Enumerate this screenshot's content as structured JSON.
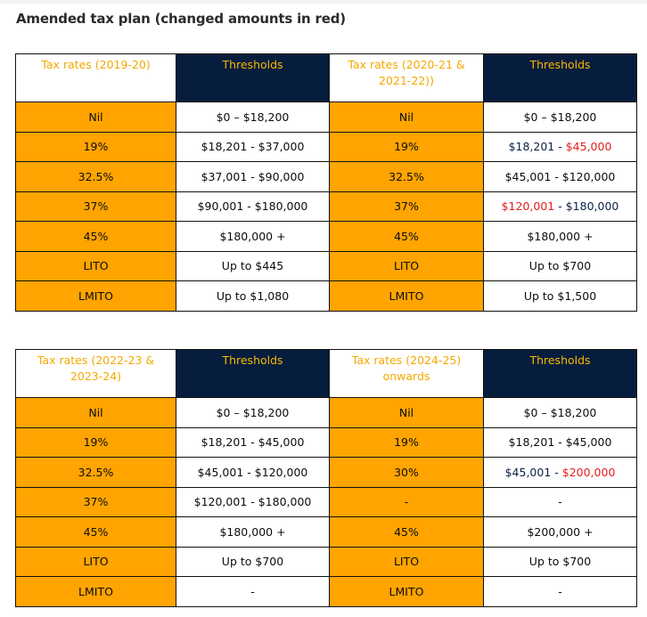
{
  "heading": "Amended tax plan (changed amounts in red)",
  "table1": {
    "headers": [
      "Tax rates (2019-20)",
      "Thresholds",
      "Tax rates (2020-21 & 2021-22))",
      "Thresholds"
    ],
    "rows": [
      {
        "rate_a": "Nil",
        "thr_a": "$0 – $18,200",
        "rate_b": "Nil",
        "thr_b_1": "$0 – $18,200",
        "thr_b_2": ""
      },
      {
        "rate_a": "19%",
        "thr_a": "$18,201 - $37,000",
        "rate_b": "19%",
        "thr_b_1": "$18,201 - ",
        "thr_b_2": "$45,000"
      },
      {
        "rate_a": "32.5%",
        "thr_a": "$37,001 - $90,000",
        "rate_b": "32.5%",
        "thr_b_1": "$45,001 - $120,000",
        "thr_b_2": ""
      },
      {
        "rate_a": "37%",
        "thr_a": "$90,001 - $180,000",
        "rate_b": "37%",
        "thr_b_1": "$120,001",
        "thr_b_2": " - $180,000"
      },
      {
        "rate_a": "45%",
        "thr_a": "$180,000 +",
        "rate_b": "45%",
        "thr_b_1": "$180,000 +",
        "thr_b_2": ""
      },
      {
        "rate_a": "LITO",
        "thr_a": "Up to $445",
        "rate_b": "LITO",
        "thr_b_1": "Up to $700",
        "thr_b_2": ""
      },
      {
        "rate_a": "LMITO",
        "thr_a": "Up to $1,080",
        "rate_b": "LMITO",
        "thr_b_1": "Up to $1,500",
        "thr_b_2": ""
      }
    ]
  },
  "table2": {
    "headers": [
      "Tax rates (2022-23 & 2023-24)",
      "Thresholds",
      "Tax rates (2024-25) onwards",
      "Thresholds"
    ],
    "rows": [
      {
        "rate_a": "Nil",
        "thr_a": "$0 – $18,200",
        "rate_b": "Nil",
        "thr_b_1": "$0 – $18,200",
        "thr_b_2": ""
      },
      {
        "rate_a": "19%",
        "thr_a": "$18,201 - $45,000",
        "rate_b": "19%",
        "thr_b_1": "$18,201 - $45,000",
        "thr_b_2": ""
      },
      {
        "rate_a": "32.5%",
        "thr_a": "$45,001 - $120,000",
        "rate_b": "30%",
        "thr_b_1": "$45,001 - ",
        "thr_b_2": "$200,000"
      },
      {
        "rate_a": "37%",
        "thr_a": "$120,001 - $180,000",
        "rate_b": "-",
        "thr_b_1": "-",
        "thr_b_2": ""
      },
      {
        "rate_a": "45%",
        "thr_a": "$180,000 +",
        "rate_b": "45%",
        "thr_b_1": "$200,000 +",
        "thr_b_2": ""
      },
      {
        "rate_a": "LITO",
        "thr_a": "Up to $700",
        "rate_b": "LITO",
        "thr_b_1": "Up to $700",
        "thr_b_2": ""
      },
      {
        "rate_a": "LMITO",
        "thr_a": "-",
        "rate_b": "LMITO",
        "thr_b_1": "-",
        "thr_b_2": ""
      }
    ]
  },
  "colors": {
    "rate_fill": "#ffa400",
    "header_navy": "#071d3d",
    "header_gold": "#f5b800",
    "changed_red": "#e51c1c",
    "navy_text": "#0b1f46"
  }
}
